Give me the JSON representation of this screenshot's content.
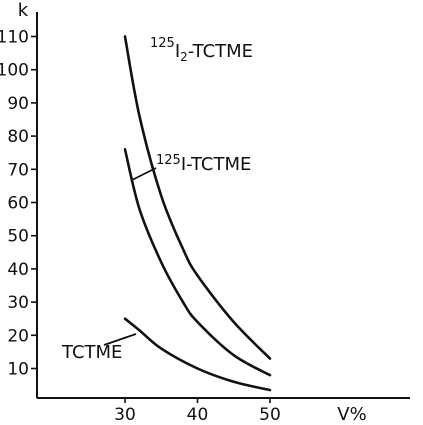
{
  "chart_data": {
    "type": "line",
    "title": "",
    "xlabel": "V%",
    "ylabel": "k",
    "xlim": [
      20,
      65
    ],
    "ylim": [
      0,
      115
    ],
    "xticks": [
      30,
      40,
      50
    ],
    "yticks": [
      10,
      20,
      30,
      40,
      50,
      60,
      70,
      80,
      90,
      100,
      110
    ],
    "grid": false,
    "series": [
      {
        "name": "TCTME",
        "label_prefix": "",
        "label_main": "TCTME",
        "label_sub": "",
        "label_tail": "",
        "x": [
          30,
          32,
          35,
          40,
          45,
          50
        ],
        "y": [
          25,
          21.5,
          16,
          10,
          6,
          3.5
        ]
      },
      {
        "name": "125I-TCTME",
        "label_prefix": "125",
        "label_main": "I-TCTME",
        "label_sub": "",
        "label_tail": "",
        "x": [
          30,
          32,
          35,
          38,
          40,
          45,
          50
        ],
        "y": [
          76,
          58,
          42,
          30,
          24,
          14,
          8
        ]
      },
      {
        "name": "125I2-TCTME",
        "label_prefix": "125",
        "label_main": "I",
        "label_sub": "2",
        "label_tail": "-TCTME",
        "x": [
          30,
          32,
          35,
          38,
          40,
          45,
          50
        ],
        "y": [
          110,
          86,
          62,
          46,
          38,
          24,
          13
        ]
      }
    ]
  }
}
